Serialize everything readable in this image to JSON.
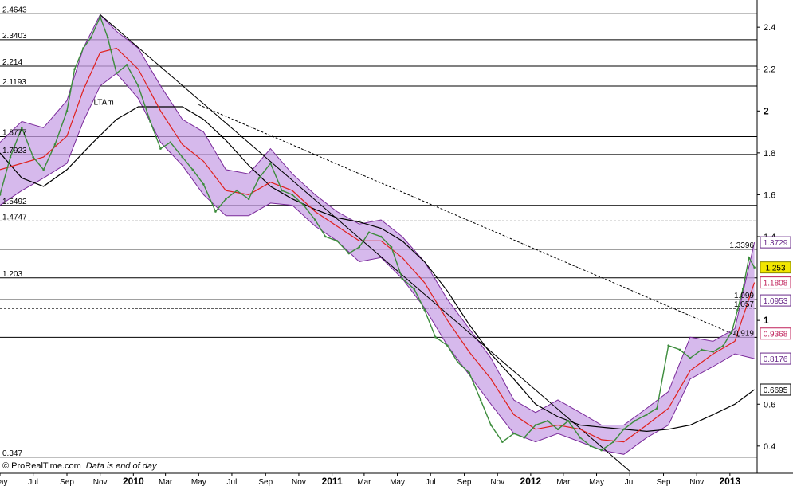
{
  "footer": {
    "copyright": "© ProRealTime.com",
    "note": "Data is end of day"
  },
  "colors": {
    "band_fill": "#c8a2e6",
    "band_edge": "#7a2a9a",
    "price": "#3c8c3c",
    "ma_red": "#e0201c",
    "ma_black": "#000000",
    "level_line": "#000000",
    "price_box": "#f2e600",
    "label_red": "#c0205a",
    "label_purple": "#6a2a8a"
  },
  "chart_data": {
    "type": "line",
    "title": "",
    "xlabel": "",
    "ylabel": "",
    "ylim": [
      0.27,
      2.53
    ],
    "xlim": [
      "2009-05-01",
      "2013-02-20"
    ],
    "grid": false,
    "x_ticks": [
      {
        "date": "2009-05-01",
        "label": "May"
      },
      {
        "date": "2009-07-01",
        "label": "Jul"
      },
      {
        "date": "2009-09-01",
        "label": "Sep"
      },
      {
        "date": "2009-11-01",
        "label": "Nov"
      },
      {
        "date": "2010-01-01",
        "label": "2010",
        "bold": true
      },
      {
        "date": "2010-03-01",
        "label": "Mar"
      },
      {
        "date": "2010-05-01",
        "label": "May"
      },
      {
        "date": "2010-07-01",
        "label": "Jul"
      },
      {
        "date": "2010-09-01",
        "label": "Sep"
      },
      {
        "date": "2010-11-01",
        "label": "Nov"
      },
      {
        "date": "2011-01-01",
        "label": "2011",
        "bold": true
      },
      {
        "date": "2011-03-01",
        "label": "Mar"
      },
      {
        "date": "2011-05-01",
        "label": "May"
      },
      {
        "date": "2011-07-01",
        "label": "Jul"
      },
      {
        "date": "2011-09-01",
        "label": "Sep"
      },
      {
        "date": "2011-11-01",
        "label": "Nov"
      },
      {
        "date": "2012-01-01",
        "label": "2012",
        "bold": true
      },
      {
        "date": "2012-03-01",
        "label": "Mar"
      },
      {
        "date": "2012-05-01",
        "label": "May"
      },
      {
        "date": "2012-07-01",
        "label": "Jul"
      },
      {
        "date": "2012-09-01",
        "label": "Sep"
      },
      {
        "date": "2012-11-01",
        "label": "Nov"
      },
      {
        "date": "2013-01-01",
        "label": "2013",
        "bold": true
      }
    ],
    "y_ticks": [
      {
        "value": 2.4,
        "label": "2.4"
      },
      {
        "value": 2.2,
        "label": "2.2"
      },
      {
        "value": 2.0,
        "label": "2",
        "bold": true
      },
      {
        "value": 1.8,
        "label": "1.8"
      },
      {
        "value": 1.6,
        "label": "1.6"
      },
      {
        "value": 1.4,
        "label": "1.4"
      },
      {
        "value": 1.0,
        "label": "1",
        "bold": true
      },
      {
        "value": 0.6,
        "label": "0.6"
      },
      {
        "value": 0.4,
        "label": "0.4"
      }
    ],
    "levels": [
      {
        "value": 2.4643,
        "label": "2.4643",
        "style": "solid",
        "side": "left"
      },
      {
        "value": 2.3403,
        "label": "2.3403",
        "style": "solid",
        "side": "left"
      },
      {
        "value": 2.214,
        "label": "2.214",
        "style": "solid",
        "side": "left"
      },
      {
        "value": 2.1193,
        "label": "2.1193",
        "style": "solid",
        "side": "left"
      },
      {
        "value": 1.8777,
        "label": "1.8777",
        "style": "solid",
        "side": "left"
      },
      {
        "value": 1.7923,
        "label": "1.7923",
        "style": "solid",
        "side": "left"
      },
      {
        "value": 1.5492,
        "label": "1.5492",
        "style": "solid",
        "side": "left"
      },
      {
        "value": 1.4747,
        "label": "1.4747",
        "style": "dashed",
        "side": "left"
      },
      {
        "value": 1.3396,
        "label": "1.3396",
        "style": "solid",
        "side": "right"
      },
      {
        "value": 1.203,
        "label": "1.203",
        "style": "solid",
        "side": "left"
      },
      {
        "value": 1.099,
        "label": "1.099",
        "style": "solid",
        "side": "right"
      },
      {
        "value": 1.057,
        "label": "1.057",
        "style": "dashed",
        "side": "right"
      },
      {
        "value": 0.919,
        "label": "0.919",
        "style": "solid",
        "side": "right"
      },
      {
        "value": 0.347,
        "label": "0.347",
        "style": "solid",
        "side": "left"
      }
    ],
    "price_boxes": [
      {
        "value": 1.3729,
        "label": "1.3729",
        "kind": "purple"
      },
      {
        "value": 1.253,
        "label": "1.253",
        "kind": "current"
      },
      {
        "value": 1.1808,
        "label": "1.1808",
        "kind": "red"
      },
      {
        "value": 1.0953,
        "label": "1.0953",
        "kind": "purple"
      },
      {
        "value": 0.9368,
        "label": "0.9368",
        "kind": "red"
      },
      {
        "value": 0.8176,
        "label": "0.8176",
        "kind": "purple"
      },
      {
        "value": 0.6695,
        "label": "0.6695",
        "kind": "black"
      }
    ],
    "annotations": [
      {
        "date": "2009-10-20",
        "value": 2.03,
        "text": "LTAm"
      }
    ],
    "trendlines": [
      {
        "style": "solid",
        "points": [
          [
            "2009-11-01",
            2.46
          ],
          [
            "2012-07-01",
            0.28
          ]
        ]
      },
      {
        "style": "dashed",
        "points": [
          [
            "2010-05-01",
            2.03
          ],
          [
            "2013-01-20",
            0.92
          ]
        ]
      }
    ],
    "series": [
      {
        "role": "price",
        "x": [
          "2009-05-01",
          "2009-05-20",
          "2009-06-10",
          "2009-07-01",
          "2009-07-20",
          "2009-08-10",
          "2009-09-01",
          "2009-09-15",
          "2009-10-01",
          "2009-10-15",
          "2009-11-01",
          "2009-11-15",
          "2009-12-01",
          "2009-12-20",
          "2010-01-10",
          "2010-02-01",
          "2010-02-20",
          "2010-03-10",
          "2010-04-01",
          "2010-04-20",
          "2010-05-10",
          "2010-06-01",
          "2010-06-20",
          "2010-07-10",
          "2010-08-01",
          "2010-08-20",
          "2010-09-10",
          "2010-10-01",
          "2010-10-20",
          "2010-11-10",
          "2010-12-01",
          "2010-12-20",
          "2011-01-10",
          "2011-02-01",
          "2011-02-20",
          "2011-03-10",
          "2011-04-01",
          "2011-04-20",
          "2011-05-10",
          "2011-06-01",
          "2011-06-20",
          "2011-07-10",
          "2011-08-01",
          "2011-08-20",
          "2011-09-10",
          "2011-10-01",
          "2011-10-20",
          "2011-11-10",
          "2011-12-01",
          "2011-12-20",
          "2012-01-10",
          "2012-02-01",
          "2012-02-20",
          "2012-03-10",
          "2012-04-01",
          "2012-04-20",
          "2012-05-10",
          "2012-06-01",
          "2012-06-20",
          "2012-07-10",
          "2012-08-01",
          "2012-08-20",
          "2012-09-10",
          "2012-10-01",
          "2012-10-20",
          "2012-11-10",
          "2012-12-01",
          "2012-12-20",
          "2013-01-05",
          "2013-01-15",
          "2013-01-25",
          "2013-02-05",
          "2013-02-15"
        ],
        "values": [
          1.6,
          1.78,
          1.92,
          1.78,
          1.72,
          1.84,
          2.0,
          2.2,
          2.3,
          2.35,
          2.45,
          2.35,
          2.18,
          2.22,
          2.12,
          1.95,
          1.82,
          1.85,
          1.78,
          1.72,
          1.65,
          1.52,
          1.58,
          1.62,
          1.58,
          1.68,
          1.75,
          1.62,
          1.6,
          1.55,
          1.48,
          1.4,
          1.38,
          1.32,
          1.35,
          1.42,
          1.4,
          1.35,
          1.2,
          1.15,
          1.05,
          0.92,
          0.88,
          0.8,
          0.75,
          0.62,
          0.5,
          0.42,
          0.46,
          0.44,
          0.5,
          0.52,
          0.48,
          0.52,
          0.44,
          0.4,
          0.38,
          0.42,
          0.48,
          0.52,
          0.55,
          0.58,
          0.88,
          0.86,
          0.82,
          0.86,
          0.85,
          0.88,
          0.95,
          1.05,
          1.15,
          1.3,
          1.253
        ]
      },
      {
        "role": "ma-red",
        "x": [
          "2009-05-01",
          "2009-06-10",
          "2009-07-20",
          "2009-09-01",
          "2009-10-01",
          "2009-11-01",
          "2009-12-01",
          "2010-01-10",
          "2010-02-20",
          "2010-04-01",
          "2010-05-10",
          "2010-06-20",
          "2010-08-01",
          "2010-09-10",
          "2010-10-20",
          "2010-12-01",
          "2011-01-10",
          "2011-02-20",
          "2011-04-01",
          "2011-05-10",
          "2011-06-20",
          "2011-08-01",
          "2011-09-10",
          "2011-10-20",
          "2011-12-01",
          "2012-01-10",
          "2012-02-20",
          "2012-04-01",
          "2012-05-10",
          "2012-06-20",
          "2012-08-01",
          "2012-09-10",
          "2012-10-20",
          "2012-12-01",
          "2013-01-10",
          "2013-02-15"
        ],
        "values": [
          1.72,
          1.75,
          1.78,
          1.88,
          2.1,
          2.28,
          2.3,
          2.2,
          2.0,
          1.84,
          1.76,
          1.62,
          1.6,
          1.66,
          1.62,
          1.52,
          1.45,
          1.38,
          1.38,
          1.3,
          1.18,
          1.0,
          0.85,
          0.72,
          0.55,
          0.48,
          0.5,
          0.48,
          0.43,
          0.42,
          0.5,
          0.58,
          0.76,
          0.84,
          0.9,
          1.1808
        ]
      },
      {
        "role": "ma-black",
        "x": [
          "2009-05-01",
          "2009-06-10",
          "2009-07-20",
          "2009-09-01",
          "2009-10-15",
          "2009-12-01",
          "2010-01-10",
          "2010-02-20",
          "2010-04-01",
          "2010-05-10",
          "2010-06-20",
          "2010-08-01",
          "2010-09-10",
          "2010-10-20",
          "2010-12-01",
          "2011-01-10",
          "2011-02-20",
          "2011-04-01",
          "2011-05-10",
          "2011-06-20",
          "2011-08-01",
          "2011-09-10",
          "2011-10-20",
          "2011-12-01",
          "2012-01-10",
          "2012-02-20",
          "2012-04-01",
          "2012-05-10",
          "2012-06-20",
          "2012-08-01",
          "2012-09-10",
          "2012-10-20",
          "2012-12-01",
          "2013-01-10",
          "2013-02-15"
        ],
        "values": [
          1.8,
          1.68,
          1.64,
          1.72,
          1.84,
          1.96,
          2.02,
          2.02,
          2.02,
          1.96,
          1.86,
          1.74,
          1.64,
          1.58,
          1.53,
          1.49,
          1.47,
          1.44,
          1.38,
          1.28,
          1.14,
          0.98,
          0.84,
          0.72,
          0.6,
          0.54,
          0.5,
          0.49,
          0.48,
          0.47,
          0.48,
          0.5,
          0.55,
          0.6,
          0.6695
        ]
      },
      {
        "role": "band-upper",
        "x": [
          "2009-05-01",
          "2009-06-10",
          "2009-07-20",
          "2009-09-01",
          "2009-10-01",
          "2009-11-01",
          "2009-12-01",
          "2010-01-10",
          "2010-02-20",
          "2010-04-01",
          "2010-05-10",
          "2010-06-20",
          "2010-08-01",
          "2010-09-10",
          "2010-10-20",
          "2010-12-01",
          "2011-01-10",
          "2011-02-20",
          "2011-04-01",
          "2011-05-10",
          "2011-06-20",
          "2011-08-01",
          "2011-09-10",
          "2011-10-20",
          "2011-12-01",
          "2012-01-10",
          "2012-02-20",
          "2012-04-01",
          "2012-05-10",
          "2012-06-20",
          "2012-08-01",
          "2012-09-10",
          "2012-10-20",
          "2012-12-01",
          "2013-01-10",
          "2013-02-15"
        ],
        "values": [
          1.85,
          1.95,
          1.92,
          2.05,
          2.3,
          2.46,
          2.38,
          2.3,
          2.12,
          1.96,
          1.9,
          1.72,
          1.7,
          1.82,
          1.7,
          1.6,
          1.52,
          1.46,
          1.48,
          1.4,
          1.28,
          1.1,
          0.96,
          0.82,
          0.62,
          0.56,
          0.62,
          0.56,
          0.5,
          0.5,
          0.58,
          0.66,
          0.92,
          0.9,
          0.96,
          1.3729
        ]
      },
      {
        "role": "band-lower",
        "x": [
          "2009-05-01",
          "2009-06-10",
          "2009-07-20",
          "2009-09-01",
          "2009-10-01",
          "2009-11-01",
          "2009-12-01",
          "2010-01-10",
          "2010-02-20",
          "2010-04-01",
          "2010-05-10",
          "2010-06-20",
          "2010-08-01",
          "2010-09-10",
          "2010-10-20",
          "2010-12-01",
          "2011-01-10",
          "2011-02-20",
          "2011-04-01",
          "2011-05-10",
          "2011-06-20",
          "2011-08-01",
          "2011-09-10",
          "2011-10-20",
          "2011-12-01",
          "2012-01-10",
          "2012-02-20",
          "2012-04-01",
          "2012-05-10",
          "2012-06-20",
          "2012-08-01",
          "2012-09-10",
          "2012-10-20",
          "2012-12-01",
          "2013-01-10",
          "2013-02-15"
        ],
        "values": [
          1.55,
          1.62,
          1.68,
          1.75,
          1.95,
          2.12,
          2.18,
          2.06,
          1.85,
          1.74,
          1.6,
          1.5,
          1.5,
          1.56,
          1.55,
          1.45,
          1.38,
          1.28,
          1.3,
          1.2,
          1.06,
          0.88,
          0.74,
          0.6,
          0.46,
          0.42,
          0.46,
          0.42,
          0.38,
          0.36,
          0.44,
          0.5,
          0.72,
          0.78,
          0.84,
          0.8176
        ]
      }
    ]
  }
}
